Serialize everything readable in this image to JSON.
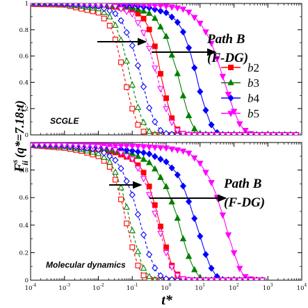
{
  "chart_data": [
    {
      "type": "line",
      "panel": "top",
      "panel_label": "SCGLE",
      "annotation": [
        "Path B",
        "(F-DG)"
      ],
      "x_scale": "log",
      "xlim": [
        0.0001,
        10000
      ],
      "ylim": [
        0,
        1
      ],
      "yticks": [
        "0",
        "0.2",
        "0.4",
        "0.6",
        "0.8",
        "1"
      ],
      "legend_position": "right",
      "series": [
        {
          "name": "b2",
          "color": "#ff0000",
          "marker": "square",
          "style": "solid",
          "x": [
            0.0001,
            0.001,
            0.01,
            0.03,
            0.1,
            0.2,
            0.3,
            0.5,
            0.7,
            1,
            1.5,
            2,
            3,
            5,
            10,
            100,
            1000,
            10000
          ],
          "y": [
            1,
            0.995,
            0.985,
            0.975,
            0.95,
            0.9,
            0.82,
            0.65,
            0.45,
            0.28,
            0.12,
            0.05,
            0.01,
            0,
            0,
            0,
            0,
            0
          ]
        },
        {
          "name": "b3",
          "color": "#008000",
          "marker": "triangle-up",
          "style": "solid",
          "x": [
            0.0001,
            0.001,
            0.01,
            0.03,
            0.1,
            0.3,
            0.5,
            1,
            1.5,
            2,
            3,
            4,
            5,
            7,
            10,
            20,
            100,
            1000,
            10000
          ],
          "y": [
            1,
            0.995,
            0.99,
            0.98,
            0.97,
            0.93,
            0.88,
            0.75,
            0.6,
            0.5,
            0.32,
            0.2,
            0.12,
            0.04,
            0.01,
            0,
            0,
            0,
            0
          ]
        },
        {
          "name": "b4",
          "color": "#0000ff",
          "marker": "diamond",
          "style": "solid",
          "x": [
            0.0001,
            0.001,
            0.01,
            0.1,
            0.3,
            1,
            2,
            3,
            5,
            7,
            10,
            15,
            20,
            30,
            50,
            100,
            1000,
            10000
          ],
          "y": [
            1,
            1,
            0.995,
            0.985,
            0.97,
            0.93,
            0.87,
            0.8,
            0.64,
            0.5,
            0.33,
            0.18,
            0.09,
            0.02,
            0,
            0,
            0,
            0
          ]
        },
        {
          "name": "b5",
          "color": "#ff00ff",
          "marker": "triangle-down",
          "style": "solid",
          "x": [
            0.0001,
            0.001,
            0.01,
            0.1,
            1,
            3,
            5,
            10,
            15,
            20,
            30,
            50,
            70,
            100,
            150,
            200,
            300,
            500,
            1000,
            10000
          ],
          "y": [
            1,
            1,
            1,
            0.995,
            0.98,
            0.96,
            0.93,
            0.85,
            0.78,
            0.72,
            0.6,
            0.42,
            0.3,
            0.18,
            0.08,
            0.04,
            0.01,
            0,
            0,
            0
          ]
        },
        {
          "name": "",
          "color": "#ff0000",
          "marker": "square-open",
          "style": "dashed",
          "x": [
            0.0001,
            0.001,
            0.01,
            0.02,
            0.03,
            0.05,
            0.07,
            0.1,
            0.15,
            0.2,
            0.3,
            0.5,
            1,
            10,
            100,
            1000,
            10000
          ],
          "y": [
            0.995,
            0.99,
            0.93,
            0.85,
            0.75,
            0.52,
            0.35,
            0.2,
            0.07,
            0.03,
            0.005,
            0,
            0,
            0,
            0,
            0,
            0
          ]
        },
        {
          "name": "",
          "color": "#008000",
          "marker": "triangle-up-open",
          "style": "dashed",
          "x": [
            0.0001,
            0.001,
            0.01,
            0.02,
            0.03,
            0.05,
            0.07,
            0.1,
            0.15,
            0.2,
            0.3,
            0.5,
            1,
            10,
            100,
            1000,
            10000
          ],
          "y": [
            1,
            0.995,
            0.96,
            0.91,
            0.85,
            0.7,
            0.55,
            0.38,
            0.2,
            0.11,
            0.03,
            0,
            0,
            0,
            0,
            0,
            0
          ]
        },
        {
          "name": "",
          "color": "#0000ff",
          "marker": "diamond-open",
          "style": "dashed",
          "x": [
            0.0001,
            0.001,
            0.01,
            0.03,
            0.05,
            0.1,
            0.15,
            0.2,
            0.3,
            0.5,
            0.7,
            1,
            2,
            10,
            100,
            1000,
            10000
          ],
          "y": [
            1,
            0.995,
            0.98,
            0.93,
            0.86,
            0.68,
            0.52,
            0.4,
            0.22,
            0.08,
            0.03,
            0.01,
            0,
            0,
            0,
            0,
            0
          ]
        },
        {
          "name": "",
          "color": "#ff00ff",
          "marker": "triangle-down-open",
          "style": "dashed",
          "x": [
            0.0001,
            0.001,
            0.01,
            0.03,
            0.1,
            0.2,
            0.3,
            0.5,
            0.7,
            1,
            1.5,
            2,
            3,
            5,
            10,
            100,
            1000,
            10000
          ],
          "y": [
            1,
            1,
            0.99,
            0.98,
            0.92,
            0.8,
            0.68,
            0.48,
            0.34,
            0.2,
            0.09,
            0.04,
            0.01,
            0,
            0,
            0,
            0,
            0
          ]
        }
      ]
    },
    {
      "type": "line",
      "panel": "bottom",
      "panel_label": "Molecular dynamics",
      "annotation": [
        "Path B",
        "(F-DG)"
      ],
      "x_scale": "log",
      "xlim": [
        0.0001,
        10000
      ],
      "ylim": [
        0,
        1
      ],
      "xticks_exp": [
        "-4",
        "-3",
        "-2",
        "-1",
        "0",
        "1",
        "2",
        "3",
        "4"
      ],
      "xtick_base": "10",
      "yticks": [
        "0",
        "0.2",
        "0.4",
        "0.6",
        "0.8"
      ],
      "xlabel": "t*",
      "ylabel": {
        "main": "F",
        "sup": "s",
        "sub": "ii",
        "arg": "(q*=7.18;t)"
      },
      "series": [
        {
          "name": "b2",
          "color": "#ff0000",
          "marker": "square",
          "style": "solid",
          "x": [
            0.0001,
            0.001,
            0.003,
            0.01,
            0.03,
            0.1,
            0.2,
            0.3,
            0.5,
            0.7,
            1,
            1.5,
            2,
            3,
            5,
            10,
            100,
            1000
          ],
          "y": [
            0.98,
            0.97,
            0.96,
            0.95,
            0.93,
            0.88,
            0.8,
            0.7,
            0.52,
            0.38,
            0.24,
            0.1,
            0.05,
            0.01,
            0,
            0,
            0,
            0
          ]
        },
        {
          "name": "b3",
          "color": "#008000",
          "marker": "triangle-up",
          "style": "solid",
          "x": [
            0.0001,
            0.001,
            0.01,
            0.1,
            0.3,
            0.5,
            1,
            2,
            3,
            4,
            5,
            7,
            10,
            15,
            20,
            100,
            1000
          ],
          "y": [
            0.98,
            0.975,
            0.96,
            0.92,
            0.86,
            0.8,
            0.68,
            0.48,
            0.32,
            0.22,
            0.15,
            0.07,
            0.02,
            0,
            0,
            0,
            0
          ]
        },
        {
          "name": "b4",
          "color": "#0000ff",
          "marker": "diamond",
          "style": "solid",
          "x": [
            0.0001,
            0.001,
            0.01,
            0.1,
            0.3,
            1,
            2,
            3,
            5,
            7,
            10,
            15,
            20,
            30,
            50,
            100,
            1000
          ],
          "y": [
            0.98,
            0.98,
            0.97,
            0.94,
            0.92,
            0.86,
            0.78,
            0.7,
            0.55,
            0.44,
            0.32,
            0.18,
            0.1,
            0.03,
            0,
            0,
            0
          ]
        },
        {
          "name": "b5",
          "color": "#ff00ff",
          "marker": "triangle-down",
          "style": "solid",
          "x": [
            0.0001,
            0.001,
            0.01,
            0.1,
            1,
            3,
            5,
            10,
            20,
            30,
            50,
            70,
            100,
            150,
            200,
            300,
            500,
            1000
          ],
          "y": [
            0.98,
            0.98,
            0.98,
            0.975,
            0.96,
            0.94,
            0.92,
            0.85,
            0.73,
            0.62,
            0.45,
            0.32,
            0.2,
            0.08,
            0.03,
            0.01,
            0,
            0
          ]
        },
        {
          "name": "",
          "color": "#ff0000",
          "marker": "square-open",
          "style": "dashed",
          "x": [
            0.0001,
            0.001,
            0.003,
            0.01,
            0.02,
            0.03,
            0.05,
            0.07,
            0.1,
            0.15,
            0.2,
            0.3,
            0.5,
            1,
            10,
            100,
            1000
          ],
          "y": [
            0.98,
            0.96,
            0.94,
            0.9,
            0.84,
            0.75,
            0.56,
            0.4,
            0.24,
            0.1,
            0.04,
            0.01,
            0,
            0,
            0,
            0,
            0
          ]
        },
        {
          "name": "",
          "color": "#008000",
          "marker": "triangle-up-open",
          "style": "dashed",
          "x": [
            0.0001,
            0.001,
            0.003,
            0.01,
            0.02,
            0.03,
            0.05,
            0.07,
            0.1,
            0.15,
            0.2,
            0.3,
            0.5,
            1,
            10,
            100,
            1000
          ],
          "y": [
            0.98,
            0.97,
            0.95,
            0.92,
            0.87,
            0.8,
            0.65,
            0.52,
            0.36,
            0.2,
            0.1,
            0.03,
            0,
            0,
            0,
            0,
            0
          ]
        },
        {
          "name": "",
          "color": "#0000ff",
          "marker": "diamond-open",
          "style": "dashed",
          "x": [
            0.0001,
            0.001,
            0.01,
            0.03,
            0.05,
            0.1,
            0.15,
            0.2,
            0.3,
            0.5,
            0.7,
            1,
            2,
            10,
            100,
            1000
          ],
          "y": [
            0.98,
            0.975,
            0.95,
            0.88,
            0.8,
            0.62,
            0.47,
            0.36,
            0.2,
            0.07,
            0.03,
            0.01,
            0,
            0,
            0,
            0
          ]
        },
        {
          "name": "",
          "color": "#ff00ff",
          "marker": "triangle-down-open",
          "style": "dashed",
          "x": [
            0.0001,
            0.001,
            0.01,
            0.03,
            0.1,
            0.2,
            0.3,
            0.5,
            0.7,
            1,
            1.5,
            2,
            3,
            5,
            10,
            100,
            1000
          ],
          "y": [
            0.98,
            0.98,
            0.97,
            0.95,
            0.88,
            0.76,
            0.64,
            0.46,
            0.33,
            0.2,
            0.09,
            0.04,
            0.01,
            0,
            0,
            0,
            0
          ]
        }
      ]
    }
  ]
}
